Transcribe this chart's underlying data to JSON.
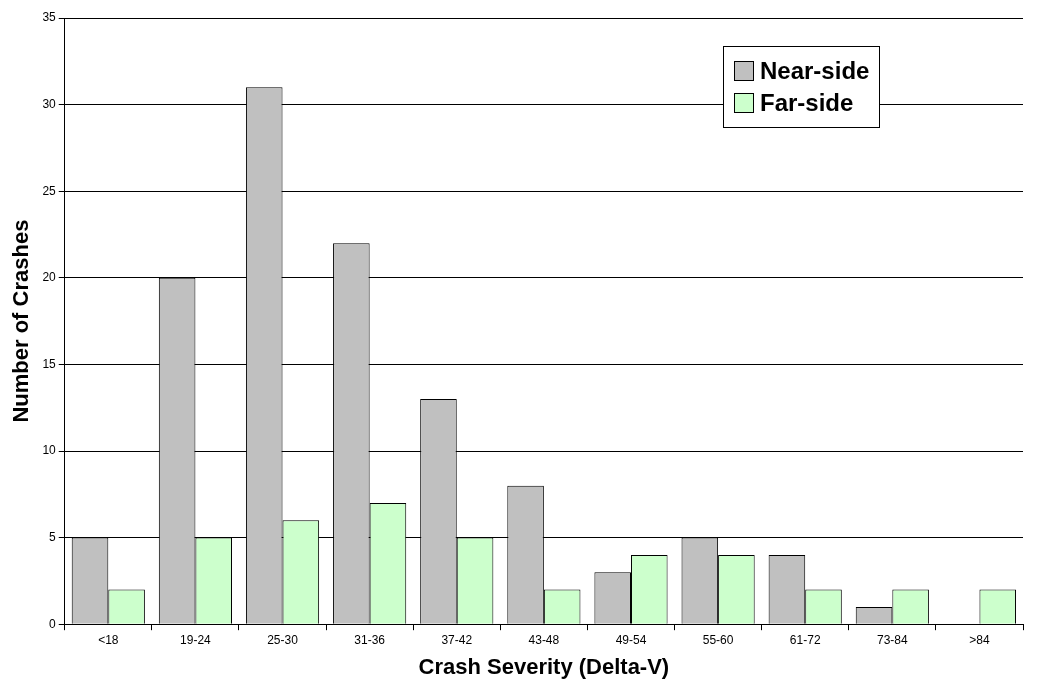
{
  "chart_data": {
    "type": "bar",
    "xlabel": "Crash Severity (Delta-V)",
    "ylabel": "Number of Crashes",
    "categories": [
      "<18",
      "19-24",
      "25-30",
      "31-36",
      "37-42",
      "43-48",
      "49-54",
      "55-60",
      "61-72",
      "73-84",
      ">84"
    ],
    "series": [
      {
        "name": "Near-side",
        "color": "#c0c0c0",
        "values": [
          5,
          20,
          31,
          22,
          13,
          8,
          3,
          5,
          4,
          1,
          0
        ]
      },
      {
        "name": "Far-side",
        "color": "#ccffcc",
        "values": [
          2,
          5,
          6,
          7,
          5,
          2,
          4,
          4,
          2,
          2,
          2
        ]
      }
    ],
    "ylim": [
      0,
      35
    ],
    "yticks": [
      0,
      5,
      10,
      15,
      20,
      25,
      30,
      35
    ],
    "grid": "y",
    "legend": "top right"
  }
}
